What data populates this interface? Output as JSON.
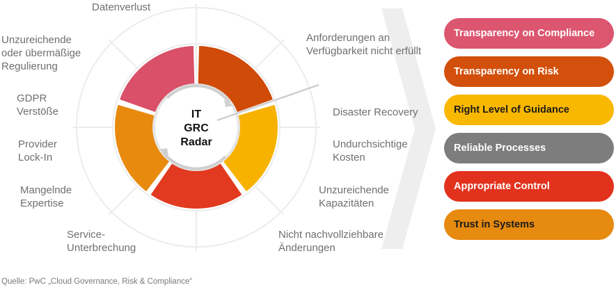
{
  "radar": {
    "center_lines": [
      "IT",
      "GRC",
      "Radar"
    ],
    "risks": [
      "Datenverlust",
      "Anforderungen an\nVerfügbarkeit nicht erfüllt",
      "Disaster Recovery",
      "Undurchsichtige\nKosten",
      "Unzureichende\nKapazitäten",
      "Nicht nachvollziehbare\nÄnderungen",
      "Service-\nUnterbrechung",
      "Mangelnde\nExpertise",
      "Provider\nLock-In",
      "GDPR\nVerstöße",
      "Unzureichende\noder übermäßige\nRegulierung"
    ],
    "segment_colors": [
      "#d95068",
      "#d04a08",
      "#f7b200",
      "#e23a20",
      "#e88a0e"
    ]
  },
  "goals": [
    {
      "label": "Transparency on Compliance",
      "color": "#dc5670",
      "text_color": "#ffffff"
    },
    {
      "label": "Transparency on Risk",
      "color": "#d2500c",
      "text_color": "#ffffff"
    },
    {
      "label": "Right Level of Guidance",
      "color": "#f9b800",
      "text_color": "#1a1a1a"
    },
    {
      "label": "Reliable Processes",
      "color": "#7d7d7d",
      "text_color": "#ffffff"
    },
    {
      "label": "Appropriate Control",
      "color": "#e2321e",
      "text_color": "#ffffff"
    },
    {
      "label": "Trust in Systems",
      "color": "#e68a10",
      "text_color": "#1a1a1a"
    }
  ],
  "source": "Quelle: PwC „Cloud Governance, Risk & Compliance“"
}
